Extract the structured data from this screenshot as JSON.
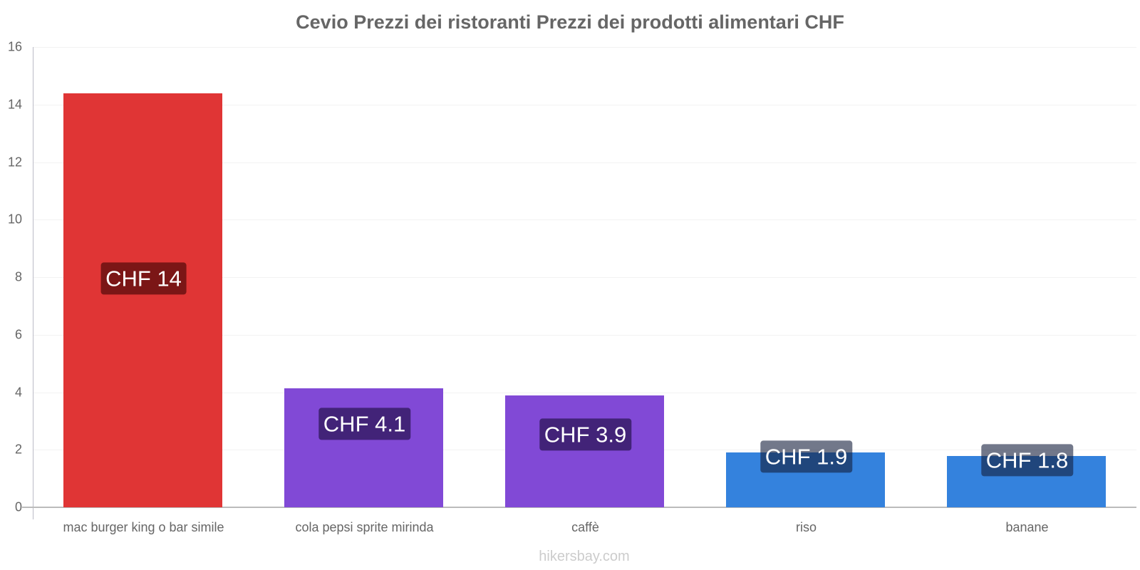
{
  "title": "Cevio Prezzi dei ristoranti Prezzi dei prodotti alimentari CHF",
  "footer": "hikersbay.com",
  "y_ticks": [
    "0",
    "2",
    "4",
    "6",
    "8",
    "10",
    "12",
    "14",
    "16"
  ],
  "bars": [
    {
      "category": "mac burger king o bar simile",
      "label": "CHF 14",
      "value": 14.4,
      "color": "#e03535",
      "label_bg": "rgba(80,10,10,0.7)"
    },
    {
      "category": "cola pepsi sprite mirinda",
      "label": "CHF 4.1",
      "value": 4.14,
      "color": "#8149d6",
      "label_bg": "rgba(40,20,80,0.7)"
    },
    {
      "category": "caffè",
      "label": "CHF 3.9",
      "value": 3.89,
      "color": "#8149d6",
      "label_bg": "rgba(40,20,80,0.7)"
    },
    {
      "category": "riso",
      "label": "CHF 1.9",
      "value": 1.91,
      "color": "#3482dd",
      "label_bg": "rgba(20,30,60,0.6)"
    },
    {
      "category": "banane",
      "label": "CHF 1.8",
      "value": 1.78,
      "color": "#3482dd",
      "label_bg": "rgba(20,30,60,0.6)"
    }
  ],
  "chart_data": {
    "type": "bar",
    "title": "Cevio Prezzi dei ristoranti Prezzi dei prodotti alimentari CHF",
    "categories": [
      "mac burger king o bar simile",
      "cola pepsi sprite mirinda",
      "caffè",
      "riso",
      "banane"
    ],
    "values": [
      14.4,
      4.14,
      3.89,
      1.91,
      1.78
    ],
    "data_labels": [
      "CHF 14",
      "CHF 4.1",
      "CHF 3.9",
      "CHF 1.9",
      "CHF 1.8"
    ],
    "colors": [
      "#e03535",
      "#8149d6",
      "#8149d6",
      "#3482dd",
      "#3482dd"
    ],
    "xlabel": "",
    "ylabel": "",
    "ylim": [
      0,
      16
    ],
    "yticks": [
      0,
      2,
      4,
      6,
      8,
      10,
      12,
      14,
      16
    ],
    "grid": true,
    "legend": null,
    "source": "hikersbay.com"
  }
}
